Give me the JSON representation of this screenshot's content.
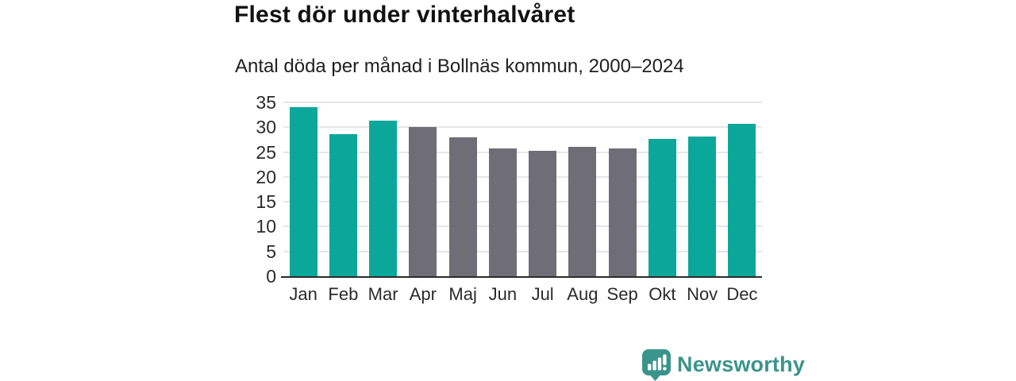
{
  "header": {
    "title": "Flest dör under vinterhalvåret",
    "subtitle": "Antal döda per månad i Bollnäs kommun, 2000–2024"
  },
  "chart_data": {
    "type": "bar",
    "title": "Flest dör under vinterhalvåret",
    "subtitle": "Antal döda per månad i Bollnäs kommun, 2000–2024",
    "categories": [
      "Jan",
      "Feb",
      "Mar",
      "Apr",
      "Maj",
      "Jun",
      "Jul",
      "Aug",
      "Sep",
      "Okt",
      "Nov",
      "Dec"
    ],
    "values": [
      34.0,
      28.6,
      31.4,
      30.0,
      28.0,
      25.8,
      25.2,
      26.1,
      25.7,
      27.7,
      28.2,
      30.7
    ],
    "series_note": "winter months teal, summer months gray",
    "bar_color_keys": [
      "winter",
      "winter",
      "winter",
      "summer",
      "summer",
      "summer",
      "summer",
      "summer",
      "summer",
      "winter",
      "winter",
      "winter"
    ],
    "palette": {
      "winter": "#0ba79a",
      "summer": "#6f6e77"
    },
    "xlabel": "",
    "ylabel": "",
    "ylim": [
      0,
      35
    ],
    "yticks": [
      0,
      5,
      10,
      15,
      20,
      25,
      30,
      35
    ],
    "grid": true,
    "legend": "none"
  },
  "branding": {
    "logo_text": "Newsworthy",
    "logo_color": "#3a948c",
    "logo_icon": "newsworthy-speech-bubble-bar-chart-icon"
  },
  "colors": {
    "background": "#ffffff",
    "gridline": "#e6e6e9",
    "axis_line": "#2b2b2b",
    "tick_label": "#2b2b2b",
    "title": "#121212",
    "subtitle": "#1f1f1f"
  }
}
